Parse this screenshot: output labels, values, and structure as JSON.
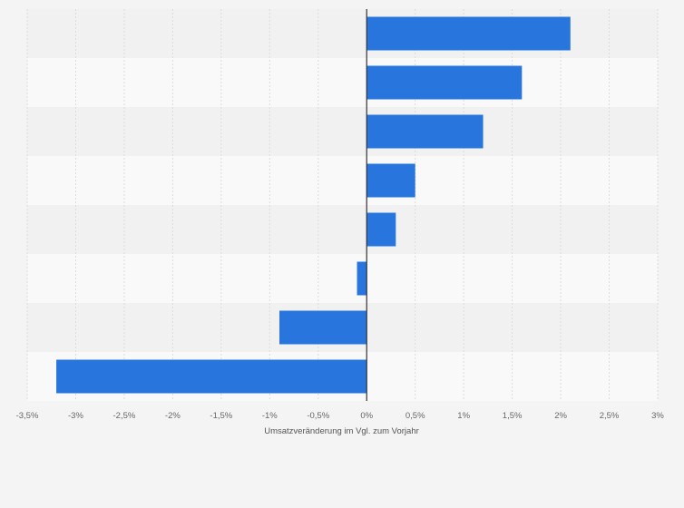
{
  "chart_data": {
    "type": "bar",
    "orientation": "horizontal",
    "categories": [
      "",
      "",
      "",
      "",
      "",
      "",
      "",
      ""
    ],
    "values": [
      2.1,
      1.6,
      1.2,
      0.5,
      0.3,
      -0.1,
      -0.9,
      -3.2
    ],
    "xlabel": "Umsatzveränderung im Vgl. zum Vorjahr",
    "xlim": [
      -3.5,
      3.0
    ],
    "xticks": [
      -3.5,
      -3,
      -2.5,
      -2,
      -1.5,
      -1,
      -0.5,
      0,
      0.5,
      1,
      1.5,
      2,
      2.5,
      3
    ],
    "xtick_labels": [
      "-3,5%",
      "-3%",
      "-2,5%",
      "-2%",
      "-1,5%",
      "-1%",
      "-0,5%",
      "0%",
      "0,5%",
      "1%",
      "1,5%",
      "2%",
      "2,5%",
      "3%"
    ],
    "grid": true,
    "bar_color": "#2876dd",
    "band_colors": [
      "#f1f1f1",
      "#f9f9f9"
    ]
  }
}
